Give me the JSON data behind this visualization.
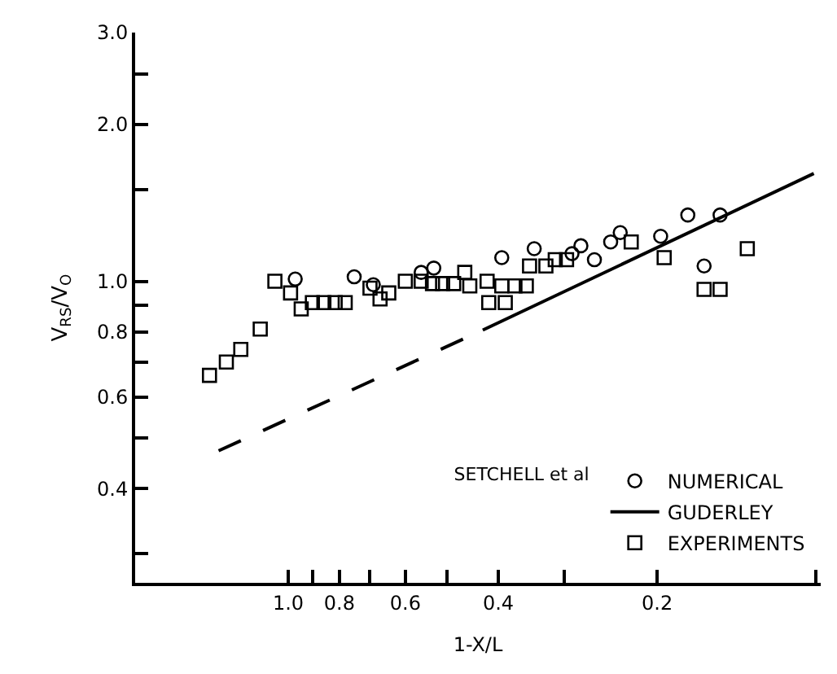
{
  "chart_data": {
    "type": "scatter",
    "xlabel": "1-X/L",
    "ylabel": "V$_{RS}$/V$_{O}$",
    "legend_title": "SETCHELL et al",
    "log": "xy",
    "legend": "bottom right",
    "xlim": [
      1.95,
      0.098
    ],
    "ylim": [
      0.264,
      3.0
    ],
    "xticks": [
      {
        "value": 1.0,
        "label": "1.0"
      },
      {
        "value": 0.9,
        "label": null
      },
      {
        "value": 0.8,
        "label": "0.8"
      },
      {
        "value": 0.7,
        "label": null
      },
      {
        "value": 0.6,
        "label": "0.6"
      },
      {
        "value": 0.5,
        "label": null
      },
      {
        "value": 0.4,
        "label": "0.4"
      },
      {
        "value": 0.3,
        "label": null
      },
      {
        "value": 0.2,
        "label": "0.2"
      },
      {
        "value": 0.1,
        "label": null
      }
    ],
    "yticks": [
      {
        "value": 0.3,
        "label": null
      },
      {
        "value": 0.4,
        "label": "0.4"
      },
      {
        "value": 0.5,
        "label": null
      },
      {
        "value": 0.6,
        "label": "0.6"
      },
      {
        "value": 0.7,
        "label": null
      },
      {
        "value": 0.8,
        "label": "0.8"
      },
      {
        "value": 0.9,
        "label": null
      },
      {
        "value": 1.0,
        "label": "1.0"
      },
      {
        "value": 1.5,
        "label": null
      },
      {
        "value": 2.0,
        "label": "2.0"
      },
      {
        "value": 2.5,
        "label": null
      },
      {
        "value": 3.0,
        "label": "3.0"
      }
    ],
    "series": [
      {
        "name": "NUMERICAL",
        "marker": "circle",
        "color": "#000000",
        "x": [
          0.97,
          0.75,
          0.69,
          0.56,
          0.53,
          0.394,
          0.342,
          0.29,
          0.279,
          0.263,
          0.245,
          0.235,
          0.197,
          0.175,
          0.152,
          0.163
        ],
        "values": [
          1.01,
          1.02,
          0.985,
          1.04,
          1.06,
          1.11,
          1.155,
          1.13,
          1.17,
          1.1,
          1.19,
          1.24,
          1.22,
          1.34,
          1.34,
          1.07
        ]
      },
      {
        "type": "line",
        "line_style": "dashed",
        "color": "#000000",
        "x": [
          1.355,
          0.428
        ],
        "values": [
          0.473,
          0.806
        ]
      },
      {
        "name": "GUDERLEY",
        "type": "line",
        "line_style": "solid",
        "color": "#000000",
        "x": [
          0.428,
          0.101
        ],
        "values": [
          0.806,
          1.61
        ]
      },
      {
        "name": "EXPERIMENTS",
        "marker": "square",
        "color": "#000000",
        "x": [
          1.41,
          1.31,
          1.23,
          1.13,
          1.06,
          0.99,
          0.945,
          0.9,
          0.856,
          0.815,
          0.78,
          0.7,
          0.67,
          0.645,
          0.6,
          0.56,
          0.533,
          0.51,
          0.486,
          0.463,
          0.453,
          0.42,
          0.417,
          0.388,
          0.394,
          0.372,
          0.354,
          0.349,
          0.325,
          0.312,
          0.297,
          0.224,
          0.194,
          0.163,
          0.152,
          0.135
        ],
        "values": [
          0.66,
          0.7,
          0.74,
          0.81,
          1.0,
          0.95,
          0.885,
          0.91,
          0.91,
          0.91,
          0.91,
          0.97,
          0.925,
          0.95,
          1.0,
          1.0,
          0.99,
          0.99,
          0.99,
          1.04,
          0.98,
          1.0,
          0.91,
          0.91,
          0.98,
          0.98,
          0.98,
          1.07,
          1.07,
          1.1,
          1.1,
          1.19,
          1.11,
          0.965,
          0.965,
          1.155
        ]
      }
    ]
  }
}
